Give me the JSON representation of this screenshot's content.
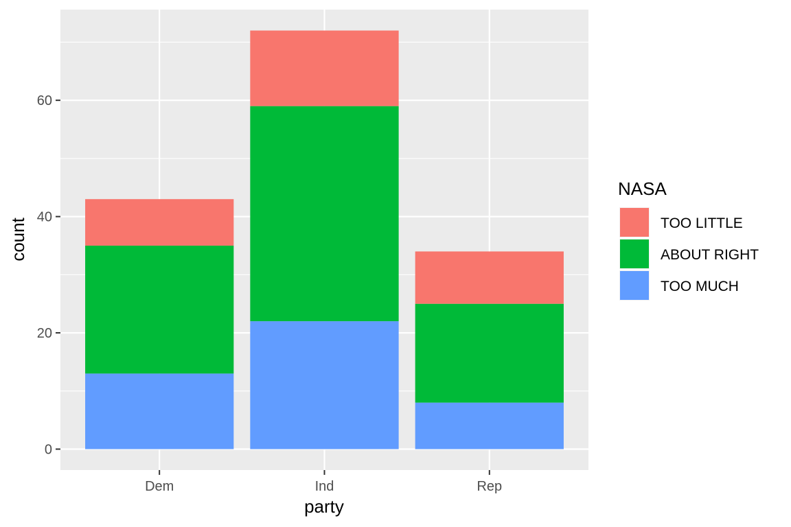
{
  "chart_data": {
    "type": "bar",
    "stacked": true,
    "categories": [
      "Dem",
      "Ind",
      "Rep"
    ],
    "series": [
      {
        "name": "TOO LITTLE",
        "values": [
          8,
          13,
          9
        ],
        "color": "#F8766D"
      },
      {
        "name": "ABOUT RIGHT",
        "values": [
          22,
          37,
          17
        ],
        "color": "#00BA38"
      },
      {
        "name": "TOO MUCH",
        "values": [
          13,
          22,
          8
        ],
        "color": "#619CFF"
      }
    ],
    "xlabel": "party",
    "ylabel": "count",
    "ylim": [
      -3.6,
      75.6
    ],
    "yticks": [
      0,
      20,
      40,
      60
    ],
    "grid": true,
    "panel_background": "#EBEBEB",
    "legend": {
      "title": "NASA",
      "position": "right",
      "entries": [
        "TOO LITTLE",
        "ABOUT RIGHT",
        "TOO MUCH"
      ]
    }
  }
}
